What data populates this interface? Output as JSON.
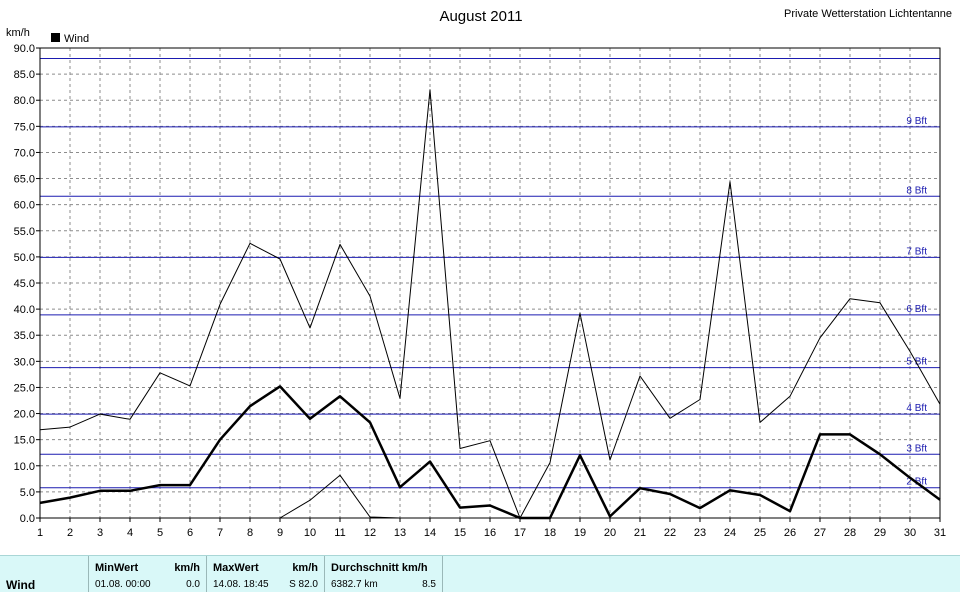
{
  "header": {
    "title": "August 2011",
    "station": "Private Wetterstation Lichtentanne",
    "unit": "km/h",
    "legend": "Wind"
  },
  "colors": {
    "beaufort_lines": "#1b1bb0",
    "grid": "#8c8c8c",
    "stats_bg": "#d9f8f8"
  },
  "chart_data": {
    "type": "line",
    "title": "August 2011",
    "ylabel": "km/h",
    "ylim": [
      0,
      90
    ],
    "y_ticks": [
      "0.0",
      "5.0",
      "10.0",
      "15.0",
      "20.0",
      "25.0",
      "30.0",
      "35.0",
      "40.0",
      "45.0",
      "50.0",
      "55.0",
      "60.0",
      "65.0",
      "70.0",
      "75.0",
      "80.0",
      "85.0",
      "90.0"
    ],
    "x": [
      1,
      2,
      3,
      4,
      5,
      6,
      7,
      8,
      9,
      10,
      11,
      12,
      13,
      14,
      15,
      16,
      17,
      18,
      19,
      20,
      21,
      22,
      23,
      24,
      25,
      26,
      27,
      28,
      29,
      30,
      31
    ],
    "series": [
      {
        "name": "Wind",
        "style": "bold",
        "values": [
          2.9,
          3.9,
          5.2,
          5.2,
          6.3,
          6.3,
          15.0,
          21.4,
          25.2,
          19.0,
          23.3,
          18.3,
          5.9,
          10.8,
          2.0,
          2.4,
          0.0,
          0.0,
          12.0,
          0.3,
          5.7,
          4.6,
          1.9,
          5.3,
          4.4,
          1.3,
          16.0,
          16.0,
          12.2,
          7.7,
          3.5
        ]
      },
      {
        "style": "thin-max",
        "values": [
          16.9,
          17.4,
          19.9,
          18.9,
          27.8,
          25.3,
          40.9,
          52.6,
          49.6,
          36.4,
          52.4,
          42.5,
          22.9,
          82.0,
          13.3,
          14.8,
          0.0,
          10.6,
          39.2,
          11.1,
          27.2,
          19.1,
          22.7,
          64.4,
          18.3,
          23.3,
          34.5,
          42.0,
          41.2,
          31.9,
          21.8
        ]
      },
      {
        "style": "thin-min",
        "values": [
          null,
          null,
          null,
          null,
          null,
          null,
          null,
          null,
          0.0,
          3.4,
          8.2,
          0.2,
          0.0,
          null,
          null,
          null,
          null,
          null,
          null,
          null,
          null,
          null,
          null,
          null,
          null,
          null,
          null,
          null,
          null,
          null,
          null
        ]
      }
    ],
    "reference_lines": [
      {
        "label": "",
        "value": 88.0
      },
      {
        "label": "9 Bft",
        "value": 74.9
      },
      {
        "label": "8 Bft",
        "value": 61.6
      },
      {
        "label": "7 Bft",
        "value": 49.9
      },
      {
        "label": "6 Bft",
        "value": 38.9
      },
      {
        "label": "5 Bft",
        "value": 28.8
      },
      {
        "label": "4 Bft",
        "value": 19.9
      },
      {
        "label": "3 Bft",
        "value": 12.2
      },
      {
        "label": "2 Bft",
        "value": 5.8
      }
    ],
    "grid": true
  },
  "stats": {
    "row_label": "Wind",
    "min_header": "MinWert",
    "min_unit": "km/h",
    "min_date": "01.08.  00:00",
    "min_value": "0.0",
    "max_header": "MaxWert",
    "max_unit": "km/h",
    "max_date": "14.08.  18:45",
    "max_value": "S 82.0",
    "avg_header": "Durchschnitt km/h",
    "avg_distance": "6382.7 km",
    "avg_value": "8.5"
  }
}
